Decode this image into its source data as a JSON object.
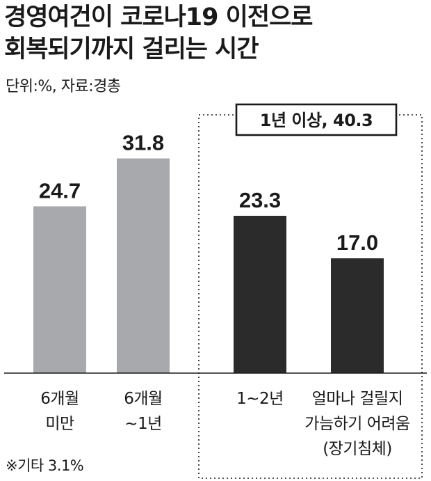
{
  "title": {
    "line1": "경영여건이 코로나19 이전으로",
    "line2": "회복되기까지 걸리는 시간"
  },
  "source": "단위:%, 자료:경총",
  "footnote": "※기타 3.1%",
  "callout": {
    "label": "1년 이상, 40.3",
    "group_categories": [
      "1~2년",
      "얼마나 걸릴지 가늠하기 어려움 (장기침체)"
    ]
  },
  "colors": {
    "short_term": "#a7a9ac",
    "long_term": "#2b2b2b",
    "text": "#1a1a1a",
    "border": "#1a1a1a"
  },
  "chart_data": {
    "type": "bar",
    "title": "경영여건이 코로나19 이전으로 회복되기까지 걸리는 시간",
    "unit": "%",
    "categories": [
      [
        "6개월",
        "미만"
      ],
      [
        "6개월",
        "~1년"
      ],
      [
        "1~2년"
      ],
      [
        "얼마나 걸릴지",
        "가늠하기 어려움",
        "(장기침체)"
      ]
    ],
    "values": [
      24.7,
      31.8,
      23.3,
      17.0
    ],
    "value_labels": [
      "24.7",
      "31.8",
      "23.3",
      "17.0"
    ],
    "bar_colors": [
      "#a7a9ac",
      "#a7a9ac",
      "#2b2b2b",
      "#2b2b2b"
    ],
    "ylim": [
      0,
      40
    ],
    "grid": false,
    "legend": "none"
  }
}
